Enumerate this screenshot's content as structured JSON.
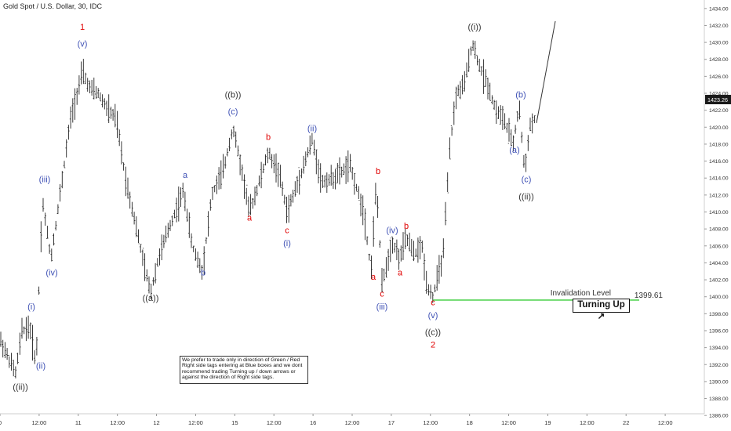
{
  "chart_data": {
    "type": "line",
    "title": "Gold Spot / U.S. Dollar, 30, IDC",
    "x_ticks": [
      "0",
      "12:00",
      "11",
      "12:00",
      "12",
      "12:00",
      "15",
      "12:00",
      "16",
      "12:00",
      "17",
      "12:00",
      "18",
      "12:00",
      "19",
      "12:00",
      "22",
      "12:00"
    ],
    "y_ticks": [
      "1434.00",
      "1432.00",
      "1430.00",
      "1428.00",
      "1426.00",
      "1424.00",
      "1422.00",
      "1420.00",
      "1418.00",
      "1416.00",
      "1414.00",
      "1412.00",
      "1410.00",
      "1408.00",
      "1406.00",
      "1404.00",
      "1402.00",
      "1400.00",
      "1398.00",
      "1396.00",
      "1394.00",
      "1392.00",
      "1390.00",
      "1388.00",
      "1386.00"
    ],
    "ylim": [
      1385,
      1435
    ],
    "last_price": "1423.26",
    "price_path": [
      {
        "x": 0,
        "y": 1395
      },
      {
        "x": 1.2,
        "y": 1392.5
      },
      {
        "x": 2.0,
        "y": 1391
      },
      {
        "x": 2.8,
        "y": 1396
      },
      {
        "x": 3.8,
        "y": 1396.5
      },
      {
        "x": 4.6,
        "y": 1392
      },
      {
        "x": 5.4,
        "y": 1411.5
      },
      {
        "x": 6.5,
        "y": 1404.5
      },
      {
        "x": 7.8,
        "y": 1413
      },
      {
        "x": 9.0,
        "y": 1421
      },
      {
        "x": 10.5,
        "y": 1426.5
      },
      {
        "x": 11.5,
        "y": 1424.5
      },
      {
        "x": 12.5,
        "y": 1424
      },
      {
        "x": 13.8,
        "y": 1422
      },
      {
        "x": 14.8,
        "y": 1421
      },
      {
        "x": 16.0,
        "y": 1414
      },
      {
        "x": 17.2,
        "y": 1409
      },
      {
        "x": 18.3,
        "y": 1404
      },
      {
        "x": 19.2,
        "y": 1400.5
      },
      {
        "x": 20.2,
        "y": 1404.5
      },
      {
        "x": 21.5,
        "y": 1408
      },
      {
        "x": 23.4,
        "y": 1412.5
      },
      {
        "x": 24.5,
        "y": 1406
      },
      {
        "x": 25.8,
        "y": 1403
      },
      {
        "x": 27.0,
        "y": 1412
      },
      {
        "x": 28.5,
        "y": 1415
      },
      {
        "x": 29.7,
        "y": 1420
      },
      {
        "x": 30.8,
        "y": 1415
      },
      {
        "x": 31.8,
        "y": 1410
      },
      {
        "x": 32.7,
        "y": 1412.5
      },
      {
        "x": 34.2,
        "y": 1417
      },
      {
        "x": 35.6,
        "y": 1414.5
      },
      {
        "x": 36.6,
        "y": 1410
      },
      {
        "x": 37.8,
        "y": 1413
      },
      {
        "x": 39.8,
        "y": 1418.5
      },
      {
        "x": 41.0,
        "y": 1413.5
      },
      {
        "x": 42.5,
        "y": 1414
      },
      {
        "x": 44.6,
        "y": 1415.5
      },
      {
        "x": 46.4,
        "y": 1410
      },
      {
        "x": 47.3,
        "y": 1403
      },
      {
        "x": 48.0,
        "y": 1413.5
      },
      {
        "x": 48.7,
        "y": 1401.5
      },
      {
        "x": 50.0,
        "y": 1406.5
      },
      {
        "x": 51.0,
        "y": 1404.5
      },
      {
        "x": 51.8,
        "y": 1407
      },
      {
        "x": 52.8,
        "y": 1405
      },
      {
        "x": 53.8,
        "y": 1406
      },
      {
        "x": 54.4,
        "y": 1401.5
      },
      {
        "x": 55.2,
        "y": 1400
      },
      {
        "x": 56.5,
        "y": 1405
      },
      {
        "x": 57.4,
        "y": 1418
      },
      {
        "x": 58.2,
        "y": 1424
      },
      {
        "x": 59.2,
        "y": 1425
      },
      {
        "x": 60.2,
        "y": 1430
      },
      {
        "x": 61.2,
        "y": 1427
      },
      {
        "x": 62.2,
        "y": 1425
      },
      {
        "x": 63.2,
        "y": 1422
      },
      {
        "x": 64.2,
        "y": 1421
      },
      {
        "x": 65.4,
        "y": 1418
      },
      {
        "x": 66.2,
        "y": 1422.5
      },
      {
        "x": 66.9,
        "y": 1414.5
      },
      {
        "x": 67.5,
        "y": 1420
      },
      {
        "x": 68.2,
        "y": 1421
      }
    ],
    "projection": [
      {
        "x": 68.4,
        "y": 1420.5
      },
      {
        "x": 70.8,
        "y": 1432.5
      }
    ],
    "invalidation": {
      "label": "Invalidation Level",
      "value": "1399.61",
      "y": 1399.61,
      "x_start": 55.2,
      "x_end": 81.5
    },
    "wave_labels": [
      {
        "text": "((ii))",
        "x": 2.6,
        "y": 1389,
        "color": "#333333"
      },
      {
        "text": "(i)",
        "x": 4.0,
        "y": 1398.5,
        "color": "#3f51b5"
      },
      {
        "text": "(ii)",
        "x": 5.2,
        "y": 1391.5,
        "color": "#3f51b5"
      },
      {
        "text": "(iii)",
        "x": 5.7,
        "y": 1413.5,
        "color": "#3f51b5"
      },
      {
        "text": "(iv)",
        "x": 6.6,
        "y": 1402.5,
        "color": "#3f51b5"
      },
      {
        "text": "(v)",
        "x": 10.5,
        "y": 1429.5,
        "color": "#3f51b5"
      },
      {
        "text": "1",
        "x": 10.5,
        "y": 1431.5,
        "color": "#e00000"
      },
      {
        "text": "((a))",
        "x": 19.2,
        "y": 1399.5,
        "color": "#333333"
      },
      {
        "text": "a",
        "x": 23.6,
        "y": 1414,
        "color": "#3f51b5"
      },
      {
        "text": "b",
        "x": 25.9,
        "y": 1402.5,
        "color": "#3f51b5"
      },
      {
        "text": "((b))",
        "x": 29.7,
        "y": 1423.5,
        "color": "#333333"
      },
      {
        "text": "(c)",
        "x": 29.7,
        "y": 1421.5,
        "color": "#3f51b5"
      },
      {
        "text": "a",
        "x": 31.8,
        "y": 1409,
        "color": "#e00000"
      },
      {
        "text": "b",
        "x": 34.2,
        "y": 1418.5,
        "color": "#e00000"
      },
      {
        "text": "c",
        "x": 36.6,
        "y": 1407.5,
        "color": "#e00000"
      },
      {
        "text": "(i)",
        "x": 36.6,
        "y": 1406,
        "color": "#3f51b5"
      },
      {
        "text": "(ii)",
        "x": 39.8,
        "y": 1419.5,
        "color": "#3f51b5"
      },
      {
        "text": "b",
        "x": 48.2,
        "y": 1414.5,
        "color": "#e00000"
      },
      {
        "text": "a",
        "x": 47.6,
        "y": 1402,
        "color": "#e00000"
      },
      {
        "text": "c",
        "x": 48.7,
        "y": 1400,
        "color": "#e00000"
      },
      {
        "text": "(iii)",
        "x": 48.7,
        "y": 1398.5,
        "color": "#3f51b5"
      },
      {
        "text": "(iv)",
        "x": 50.0,
        "y": 1407.5,
        "color": "#3f51b5"
      },
      {
        "text": "b",
        "x": 51.8,
        "y": 1408,
        "color": "#e00000"
      },
      {
        "text": "a",
        "x": 51.0,
        "y": 1402.5,
        "color": "#e00000"
      },
      {
        "text": "c",
        "x": 55.2,
        "y": 1399,
        "color": "#e00000"
      },
      {
        "text": "(v)",
        "x": 55.2,
        "y": 1397.5,
        "color": "#3f51b5"
      },
      {
        "text": "((c))",
        "x": 55.2,
        "y": 1395.5,
        "color": "#333333"
      },
      {
        "text": "2",
        "x": 55.2,
        "y": 1394,
        "color": "#e00000"
      },
      {
        "text": "((i))",
        "x": 60.5,
        "y": 1431.5,
        "color": "#333333"
      },
      {
        "text": "(a)",
        "x": 65.6,
        "y": 1417,
        "color": "#3f51b5"
      },
      {
        "text": "(b)",
        "x": 66.4,
        "y": 1423.5,
        "color": "#3f51b5"
      },
      {
        "text": "(c)",
        "x": 67.1,
        "y": 1413.5,
        "color": "#3f51b5"
      },
      {
        "text": "((ii))",
        "x": 67.1,
        "y": 1411.5,
        "color": "#333333"
      }
    ],
    "grid": false,
    "colors": {
      "price": "#222222",
      "invalidation": "#33cc33",
      "axis_text": "#333333",
      "price_tag_bg": "#1a1a1a"
    }
  },
  "badges": {
    "turning_up": "Turning Up ↗"
  },
  "note": "We prefer to trade only in direction of Green / Red Right side tags entering at Blue boxes and we dont recommend trading Turning up / down arrows or against the direction of Right side tags."
}
